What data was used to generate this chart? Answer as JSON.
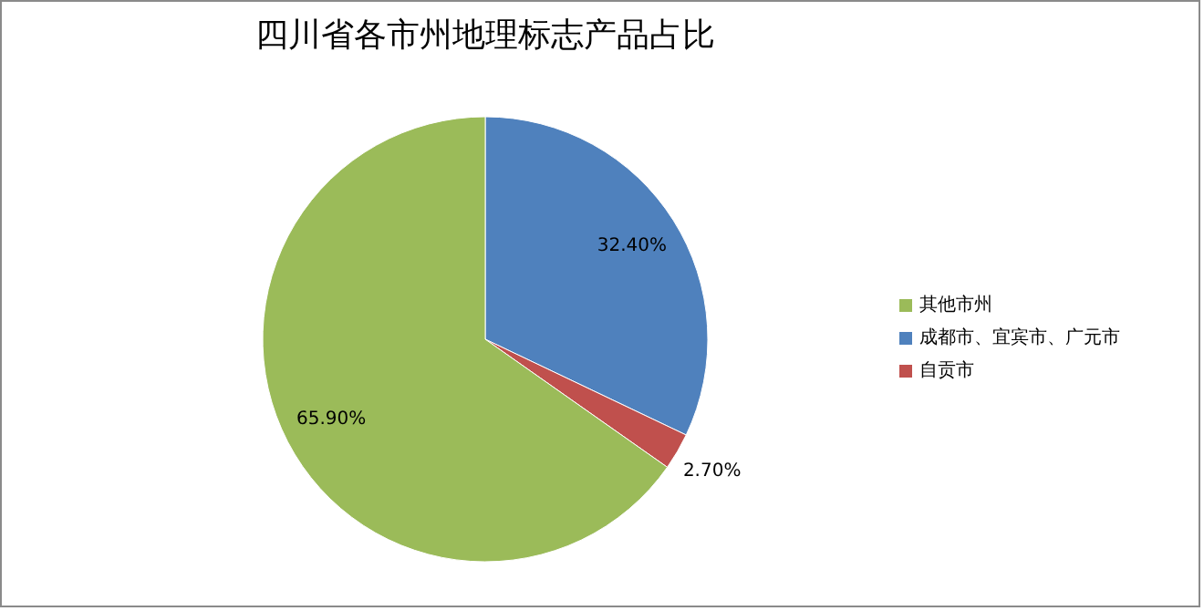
{
  "chart_data": {
    "type": "pie",
    "title": "四川省各市州地理标志产品占比",
    "categories": [
      "成都市、宜宾市、广元市",
      "自贡市",
      "其他市州"
    ],
    "values": [
      32.4,
      2.7,
      65.9
    ],
    "value_labels": [
      "32.40%",
      "2.70%",
      "65.90%"
    ],
    "colors": [
      "#4f81bd",
      "#c0504d",
      "#9bbb59"
    ],
    "legend": "right"
  }
}
